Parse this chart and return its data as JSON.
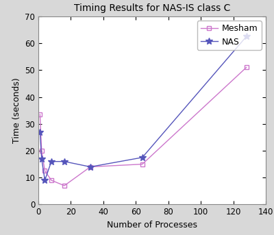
{
  "title": "Timing Results for NAS-IS class C",
  "xlabel": "Number of Processes",
  "ylabel": "Time (seconds)",
  "xlim": [
    0,
    140
  ],
  "ylim": [
    0,
    70
  ],
  "xticks": [
    0,
    20,
    40,
    60,
    80,
    100,
    120,
    140
  ],
  "yticks": [
    0,
    10,
    20,
    30,
    40,
    50,
    60,
    70
  ],
  "mesham_x": [
    1,
    2,
    4,
    8,
    16,
    32,
    64,
    128
  ],
  "mesham_y": [
    33.5,
    20.0,
    12.5,
    9.0,
    7.0,
    14.0,
    15.0,
    51.0
  ],
  "nas_x": [
    1,
    2,
    4,
    8,
    16,
    32,
    64,
    128
  ],
  "nas_y": [
    27.0,
    17.0,
    9.0,
    16.0,
    16.0,
    14.0,
    17.5,
    62.5
  ],
  "mesham_color": "#cc77cc",
  "nas_color": "#5555bb",
  "fig_bg_color": "#d8d8d8",
  "plot_bg_color": "#ffffff",
  "legend_labels": [
    "Mesham",
    "NAS"
  ],
  "title_fontsize": 10,
  "axis_fontsize": 9,
  "tick_fontsize": 8.5,
  "legend_fontsize": 9
}
